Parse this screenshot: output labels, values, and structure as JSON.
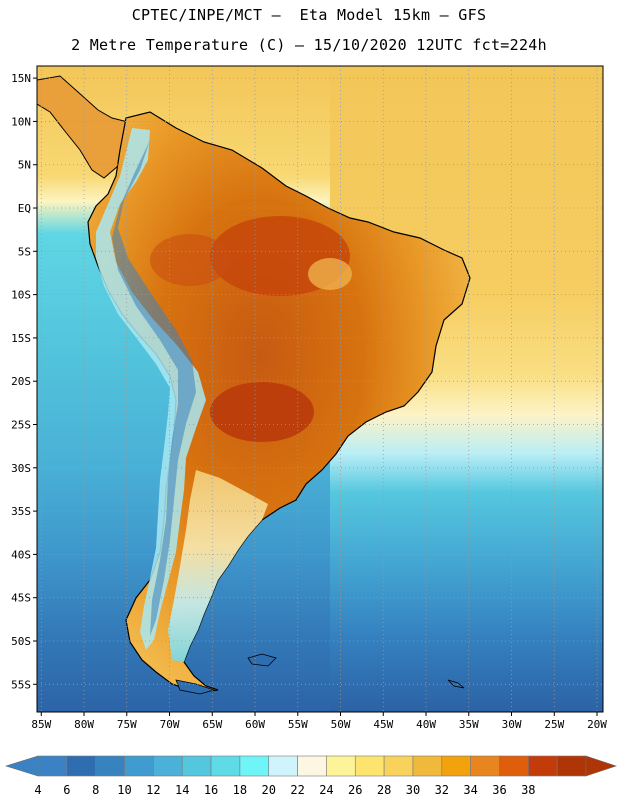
{
  "title": {
    "line1": "CPTEC/INPE/MCT –  Eta Model 15km – GFS",
    "line2": "2 Metre Temperature (C) – 15/10/2020 12UTC fct=224h"
  },
  "map": {
    "lat_labels": [
      "15N",
      "10N",
      "5N",
      "EQ",
      "5S",
      "10S",
      "15S",
      "20S",
      "25S",
      "30S",
      "35S",
      "40S",
      "45S",
      "50S",
      "55S"
    ],
    "lon_labels": [
      "85W",
      "80W",
      "75W",
      "70W",
      "65W",
      "60W",
      "55W",
      "50W",
      "45W",
      "40W",
      "35W",
      "30W",
      "25W",
      "20W"
    ],
    "lat_values": [
      15,
      10,
      5,
      0,
      -5,
      -10,
      -15,
      -20,
      -25,
      -30,
      -35,
      -40,
      -45,
      -50,
      -55
    ],
    "lon_values": [
      -85,
      -80,
      -75,
      -70,
      -65,
      -60,
      -55,
      -50,
      -45,
      -40,
      -35,
      -30,
      -25,
      -20
    ],
    "extent": {
      "lon_min": -85.5,
      "lon_max": -19.3,
      "lat_min": -58.2,
      "lat_max": 16.4
    }
  },
  "colorbar": {
    "labels": [
      "4",
      "6",
      "8",
      "10",
      "12",
      "14",
      "16",
      "18",
      "20",
      "22",
      "24",
      "26",
      "28",
      "30",
      "32",
      "34",
      "36",
      "38"
    ],
    "colors": [
      "#3b82c4",
      "#2f6db1",
      "#3783c0",
      "#3f9bd0",
      "#4bb1d8",
      "#54c7df",
      "#5fdbe8",
      "#6ff4f7",
      "#cff4fb",
      "#fdf6e2",
      "#fdf49a",
      "#fce46f",
      "#f8d25a",
      "#f0b93b",
      "#f2a20c",
      "#e9851f",
      "#df5e0b",
      "#c33b0a",
      "#b03506"
    ]
  }
}
